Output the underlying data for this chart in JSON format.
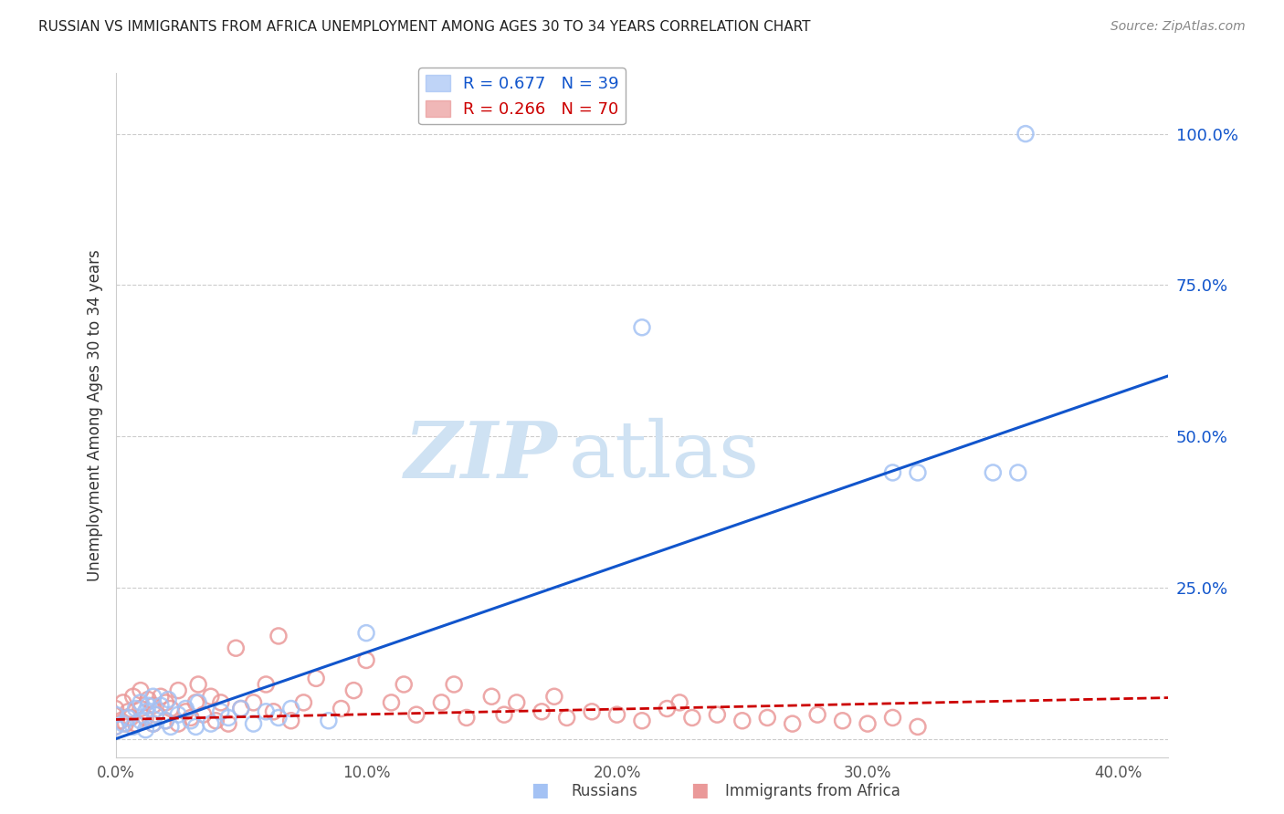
{
  "title": "RUSSIAN VS IMMIGRANTS FROM AFRICA UNEMPLOYMENT AMONG AGES 30 TO 34 YEARS CORRELATION CHART",
  "source": "Source: ZipAtlas.com",
  "ylabel": "Unemployment Among Ages 30 to 34 years",
  "yticks": [
    0.0,
    0.25,
    0.5,
    0.75,
    1.0
  ],
  "ytick_labels": [
    "",
    "25.0%",
    "50.0%",
    "75.0%",
    "100.0%"
  ],
  "xticks": [
    0.0,
    0.1,
    0.2,
    0.3,
    0.4
  ],
  "xtick_labels": [
    "0.0%",
    "10.0%",
    "20.0%",
    "30.0%",
    "40.0%"
  ],
  "xlim": [
    0.0,
    0.42
  ],
  "ylim": [
    -0.03,
    1.1
  ],
  "russian_R": 0.677,
  "russian_N": 39,
  "africa_R": 0.266,
  "africa_N": 70,
  "russian_color": "#a4c2f4",
  "africa_color": "#ea9999",
  "russian_line_color": "#1155cc",
  "africa_line_color": "#cc0000",
  "watermark_zip": "ZIP",
  "watermark_atlas": "atlas",
  "watermark_color": "#cfe2f3",
  "legend_label_russian": "Russians",
  "legend_label_africa": "Immigrants from Africa",
  "russians_x": [
    0.0,
    0.0,
    0.003,
    0.005,
    0.007,
    0.008,
    0.01,
    0.01,
    0.012,
    0.012,
    0.013,
    0.015,
    0.015,
    0.016,
    0.018,
    0.02,
    0.021,
    0.022,
    0.025,
    0.028,
    0.03,
    0.032,
    0.033,
    0.038,
    0.042,
    0.045,
    0.05,
    0.055,
    0.06,
    0.065,
    0.07,
    0.085,
    0.1,
    0.21,
    0.31,
    0.32,
    0.35,
    0.36,
    0.363
  ],
  "russians_y": [
    0.02,
    0.04,
    0.025,
    0.035,
    0.02,
    0.05,
    0.03,
    0.06,
    0.015,
    0.045,
    0.055,
    0.025,
    0.07,
    0.04,
    0.055,
    0.03,
    0.065,
    0.02,
    0.04,
    0.05,
    0.03,
    0.02,
    0.06,
    0.025,
    0.045,
    0.035,
    0.05,
    0.025,
    0.045,
    0.035,
    0.05,
    0.03,
    0.175,
    0.68,
    0.44,
    0.44,
    0.44,
    0.44,
    1.0
  ],
  "africa_x": [
    0.0,
    0.0,
    0.002,
    0.003,
    0.004,
    0.005,
    0.006,
    0.007,
    0.008,
    0.01,
    0.01,
    0.012,
    0.013,
    0.015,
    0.015,
    0.016,
    0.018,
    0.02,
    0.02,
    0.022,
    0.025,
    0.025,
    0.028,
    0.03,
    0.032,
    0.033,
    0.035,
    0.038,
    0.04,
    0.042,
    0.045,
    0.048,
    0.05,
    0.055,
    0.06,
    0.063,
    0.065,
    0.07,
    0.075,
    0.08,
    0.09,
    0.095,
    0.1,
    0.11,
    0.115,
    0.12,
    0.13,
    0.135,
    0.14,
    0.15,
    0.155,
    0.16,
    0.17,
    0.175,
    0.18,
    0.19,
    0.2,
    0.21,
    0.22,
    0.225,
    0.23,
    0.24,
    0.25,
    0.26,
    0.27,
    0.28,
    0.29,
    0.3,
    0.31,
    0.32
  ],
  "africa_y": [
    0.02,
    0.05,
    0.03,
    0.06,
    0.025,
    0.045,
    0.035,
    0.07,
    0.025,
    0.05,
    0.08,
    0.035,
    0.065,
    0.025,
    0.055,
    0.04,
    0.07,
    0.03,
    0.06,
    0.05,
    0.025,
    0.08,
    0.045,
    0.035,
    0.06,
    0.09,
    0.04,
    0.07,
    0.03,
    0.06,
    0.025,
    0.15,
    0.05,
    0.06,
    0.09,
    0.045,
    0.17,
    0.03,
    0.06,
    0.1,
    0.05,
    0.08,
    0.13,
    0.06,
    0.09,
    0.04,
    0.06,
    0.09,
    0.035,
    0.07,
    0.04,
    0.06,
    0.045,
    0.07,
    0.035,
    0.045,
    0.04,
    0.03,
    0.05,
    0.06,
    0.035,
    0.04,
    0.03,
    0.035,
    0.025,
    0.04,
    0.03,
    0.025,
    0.035,
    0.02
  ],
  "russian_line_x": [
    0.0,
    0.42
  ],
  "russian_line_y": [
    0.0,
    0.6
  ],
  "africa_line_x": [
    0.0,
    0.42
  ],
  "africa_line_y": [
    0.032,
    0.068
  ]
}
